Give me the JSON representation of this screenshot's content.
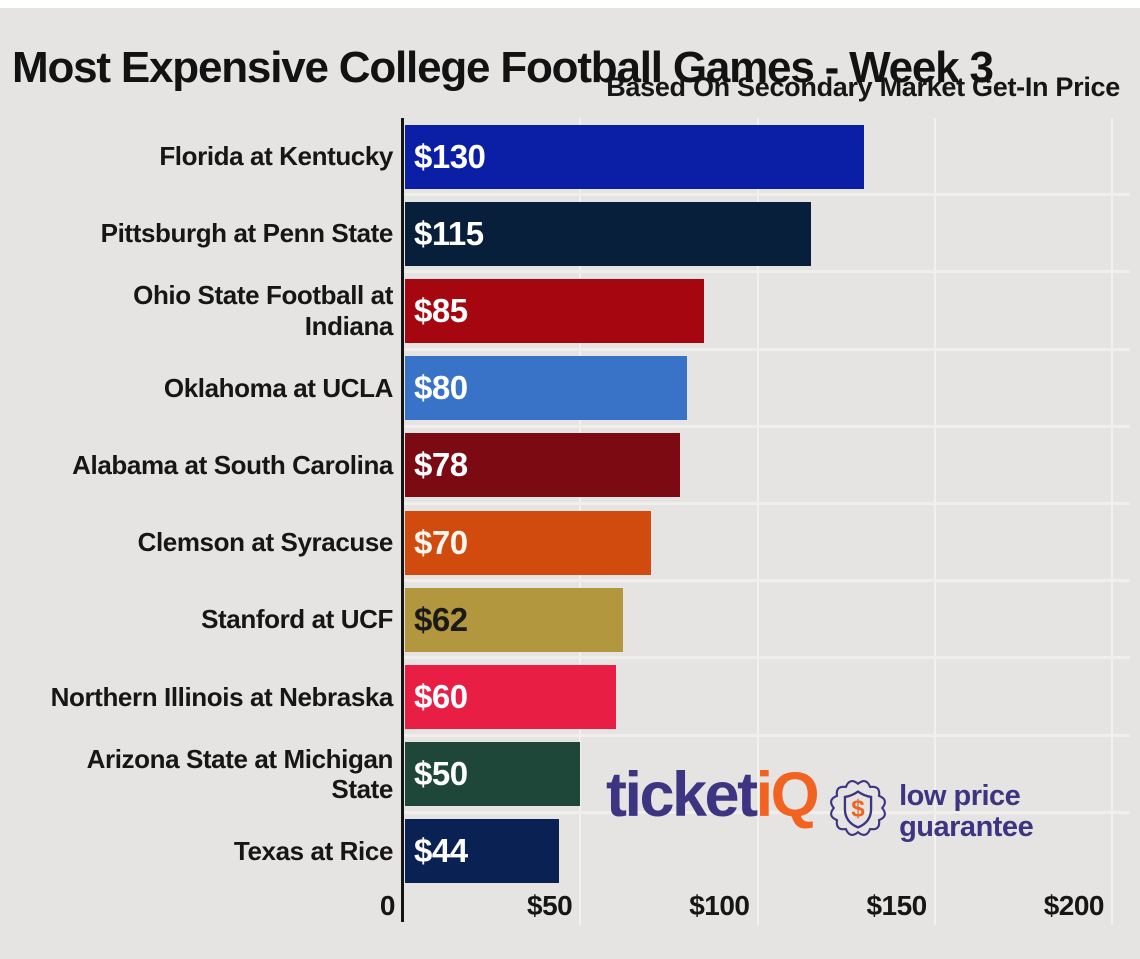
{
  "page": {
    "title": "Most Expensive College Football Games - Week 3",
    "subtitle": "Based On Secondary Market Get-In Price"
  },
  "chart_data": {
    "type": "bar",
    "orientation": "horizontal",
    "title": "Most Expensive College Football Games - Week 3",
    "subtitle": "Based On Secondary Market Get-In Price",
    "categories": [
      "Florida at Kentucky",
      "Pittsburgh at Penn State",
      "Ohio State Football at Indiana",
      "Oklahoma at UCLA",
      "Alabama at South Carolina",
      "Clemson at Syracuse",
      "Stanford at UCF",
      "Northern Illinois at Nebraska",
      "Arizona State at Michigan State",
      "Texas at Rice"
    ],
    "category_lines": [
      [
        "Florida at Kentucky"
      ],
      [
        "Pittsburgh at Penn State"
      ],
      [
        "Ohio State Football at",
        "Indiana"
      ],
      [
        "Oklahoma at UCLA"
      ],
      [
        "Alabama at South Carolina"
      ],
      [
        "Clemson at Syracuse"
      ],
      [
        "Stanford at UCF"
      ],
      [
        "Northern Illinois at Nebraska"
      ],
      [
        "Arizona State at Michigan",
        "State"
      ],
      [
        "Texas at Rice"
      ]
    ],
    "values": [
      130,
      115,
      85,
      80,
      78,
      70,
      62,
      60,
      50,
      44
    ],
    "value_labels": [
      "$130",
      "$115",
      "$85",
      "$80",
      "$78",
      "$70",
      "$62",
      "$60",
      "$50",
      "$44"
    ],
    "bar_colors": [
      "#0b1fa6",
      "#081f3c",
      "#a6060f",
      "#3873c8",
      "#7c0a13",
      "#d14a0e",
      "#b2973f",
      "#e81e45",
      "#1e4639",
      "#0a2154"
    ],
    "value_label_colors": [
      "#ffffff",
      "#ffffff",
      "#ffffff",
      "#ffffff",
      "#ffffff",
      "#fdf6ec",
      "#1a1a1a",
      "#ffffff",
      "#ffffff",
      "#ffffff"
    ],
    "x_ticks": [
      {
        "value": 0,
        "label": "0"
      },
      {
        "value": 50,
        "label": "$50"
      },
      {
        "value": 100,
        "label": "$100"
      },
      {
        "value": 150,
        "label": "$150"
      },
      {
        "value": 200,
        "label": "$200"
      }
    ],
    "xlim": [
      0,
      200
    ],
    "grid": true,
    "legend": null
  },
  "footer": {
    "brand_ticket": "ticket",
    "brand_iq": "iQ",
    "badge_icon": "dollar-seal-badge",
    "badge_symbol": "$",
    "tagline_line1": "low price",
    "tagline_line2": "guarantee"
  },
  "colors": {
    "background": "#e5e4e2",
    "top_strip": "#ffffff",
    "title_text": "#121212",
    "axis_line": "#141414",
    "gridline": "#f2f1ee",
    "brand_indigo": "#3d3582",
    "brand_orange": "#f26322"
  }
}
